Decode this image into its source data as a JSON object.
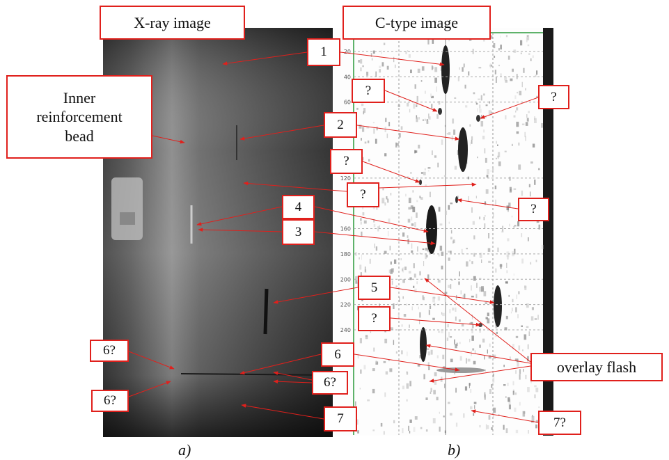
{
  "panels": [
    {
      "title": "X-ray image",
      "caption": "a)"
    },
    {
      "title": "C-type image",
      "caption": "b)"
    }
  ],
  "callouts": [
    "Inner reinforcement bead",
    "1",
    "?",
    "?",
    "2",
    "?",
    "?",
    "?",
    "4",
    "3",
    "5",
    "?",
    "6",
    "6?",
    "6?",
    "6?",
    "7",
    "7?",
    "overlay flash"
  ],
  "scale_labels": [
    20,
    40,
    60,
    120,
    160,
    180,
    200,
    220,
    240
  ]
}
